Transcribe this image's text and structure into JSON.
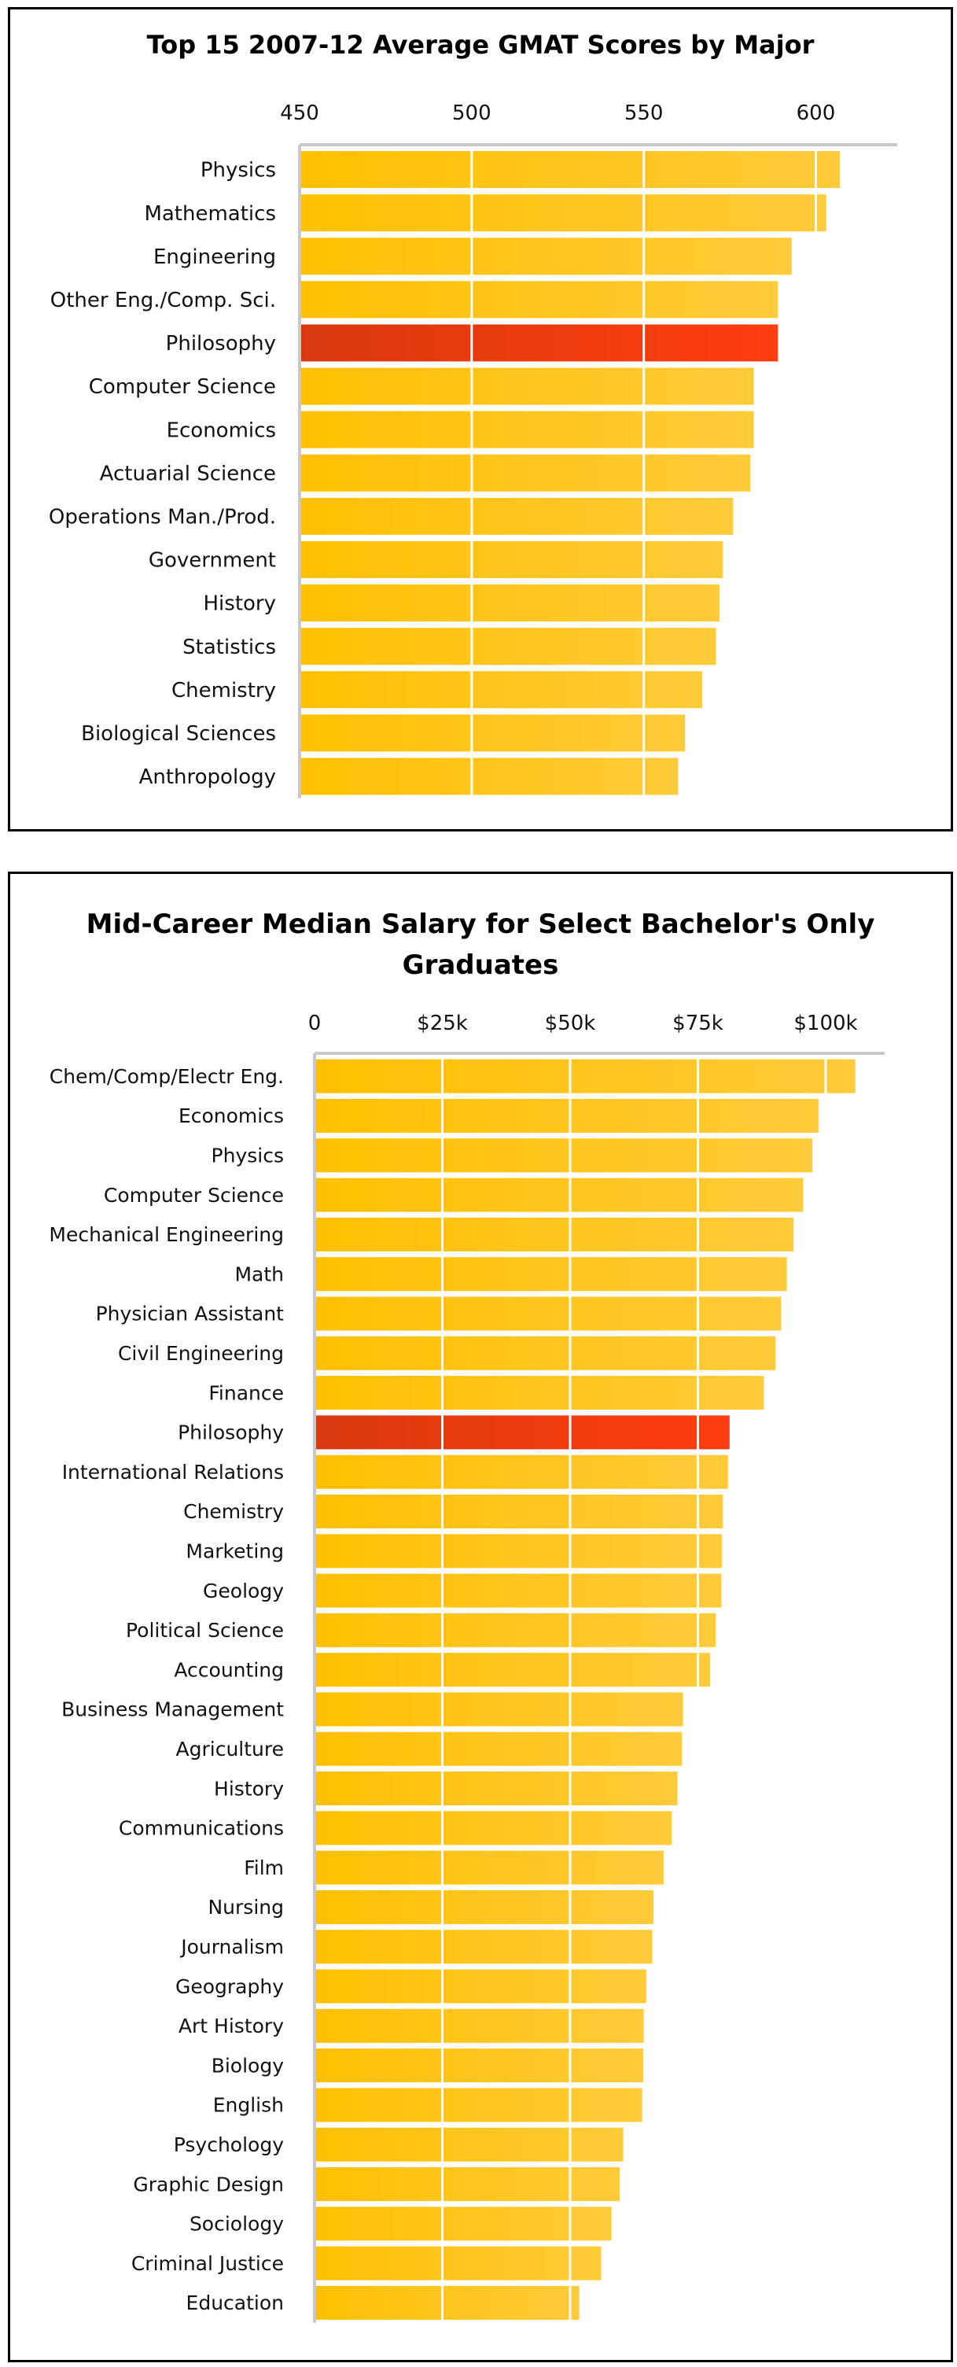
{
  "chart_data": [
    {
      "type": "bar",
      "orientation": "horizontal",
      "title": "Top 15 2007-12 Average GMAT Scores by Major",
      "categories": [
        "Physics",
        "Mathematics",
        "Engineering",
        "Other Eng./Comp. Sci.",
        "Philosophy",
        "Computer Science",
        "Economics",
        "Actuarial Science",
        "Operations Man./Prod.",
        "Government",
        "History",
        "Statistics",
        "Chemistry",
        "Biological Sciences",
        "Anthropology"
      ],
      "values": [
        607,
        603,
        593,
        589,
        589,
        582,
        582,
        581,
        576,
        573,
        572,
        571,
        567,
        562,
        560
      ],
      "xlim": [
        450,
        620
      ],
      "xticks": [
        450,
        500,
        550,
        600
      ],
      "xtick_labels": [
        "450",
        "500",
        "550",
        "600"
      ],
      "axis_position": "top",
      "grid": true,
      "highlight": "Philosophy",
      "bar_color": "#FFC20E",
      "highlight_color": "#F03A10"
    },
    {
      "type": "bar",
      "orientation": "horizontal",
      "title": "Mid-Career Median Salary for Select Bachelor's Only Graduates",
      "categories": [
        "Chem/Comp/Electr Eng.",
        "Economics",
        "Physics",
        "Computer Science",
        "Mechanical Engineering",
        "Math",
        "Physician Assistant",
        "Civil Engineering",
        "Finance",
        "Philosophy",
        "International Relations",
        "Chemistry",
        "Marketing",
        "Geology",
        "Political Science",
        "Accounting",
        "Business Management",
        "Agriculture",
        "History",
        "Communications",
        "Film",
        "Nursing",
        "Journalism",
        "Geography",
        "Art History",
        "Biology",
        "English",
        "Psychology",
        "Graphic Design",
        "Sociology",
        "Criminal Justice",
        "Education"
      ],
      "values": [
        105800,
        98600,
        97400,
        95600,
        93700,
        92400,
        91300,
        90200,
        87900,
        81200,
        80900,
        79900,
        79700,
        79600,
        78500,
        77400,
        72100,
        71900,
        71000,
        69900,
        68300,
        66300,
        66100,
        64900,
        64400,
        64300,
        64100,
        60400,
        59700,
        58100,
        56100,
        51800
      ],
      "xlim": [
        0,
        110000
      ],
      "xticks": [
        0,
        25000,
        50000,
        75000,
        100000
      ],
      "xtick_labels": [
        "0",
        "$25k",
        "$50k",
        "$75k",
        "$100k"
      ],
      "axis_position": "top",
      "grid": true,
      "highlight": "Philosophy",
      "bar_color": "#FFC20E",
      "highlight_color": "#F03A10"
    }
  ]
}
